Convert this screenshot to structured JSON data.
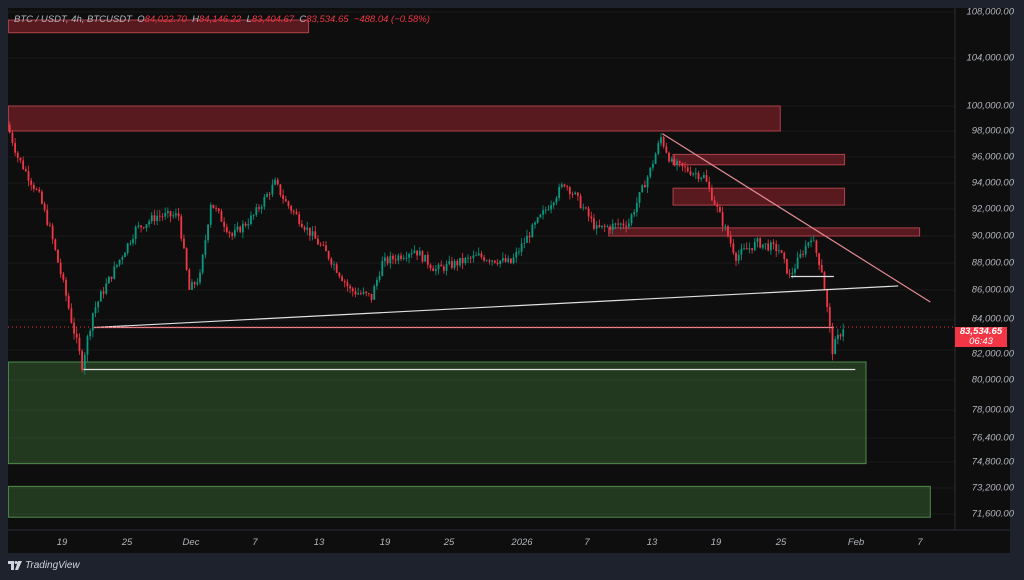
{
  "header": {
    "symbol": "BTC / USDT, 4h, BTCUSDT",
    "open_label": "O",
    "open": "84,022.70",
    "high_label": "H",
    "high": "84,146.22",
    "low_label": "L",
    "low": "83,404.67",
    "close_label": "C",
    "close": "83,534.65",
    "change": "−488.04 (−0.58%)"
  },
  "price_tag": {
    "price": "83,534.65",
    "countdown": "06:43",
    "color": "#f23645"
  },
  "branding": {
    "logo_text": "TradingView"
  },
  "colors": {
    "up": "#089981",
    "down": "#f23645",
    "background": "#0e0e0e",
    "supply_zone": "#7a1f28",
    "demand_zone": "#2a4a2a"
  },
  "chart_data": {
    "type": "candlestick",
    "title": "BTC / USDT, 4h, BTCUSDT",
    "y_ticks": [
      "108,000.00",
      "104,000.00",
      "100,000.00",
      "98,000.00",
      "96,000.00",
      "94,000.00",
      "92,000.00",
      "90,000.00",
      "88,000.00",
      "86,000.00",
      "84,000.00",
      "82,000.00",
      "80,000.00",
      "78,000.00",
      "76,400.00",
      "74,800.00",
      "73,200.00",
      "71,600.00"
    ],
    "x_ticks": [
      "19",
      "25",
      "Dec",
      "7",
      "13",
      "19",
      "25",
      "2026",
      "7",
      "13",
      "19",
      "25",
      "Feb",
      "7"
    ],
    "ylim": [
      70500,
      109000
    ],
    "approx_close_path": [
      [
        "2025-11-14",
        98500
      ],
      [
        "2025-11-15",
        96000
      ],
      [
        "2025-11-17",
        93000
      ],
      [
        "2025-11-18",
        90500
      ],
      [
        "2025-11-20",
        84000
      ],
      [
        "2025-11-21",
        81000
      ],
      [
        "2025-11-22",
        84500
      ],
      [
        "2025-11-24",
        87500
      ],
      [
        "2025-11-26",
        90500
      ],
      [
        "2025-11-28",
        91500
      ],
      [
        "2025-11-30",
        91500
      ],
      [
        "2025-12-01",
        86000
      ],
      [
        "2025-12-02",
        87000
      ],
      [
        "2025-12-03",
        92500
      ],
      [
        "2025-12-05",
        90000
      ],
      [
        "2025-12-07",
        91500
      ],
      [
        "2025-12-09",
        94000
      ],
      [
        "2025-12-10",
        92500
      ],
      [
        "2025-12-12",
        90500
      ],
      [
        "2025-12-14",
        88500
      ],
      [
        "2025-12-16",
        86000
      ],
      [
        "2025-12-18",
        85500
      ],
      [
        "2025-12-19",
        88000
      ],
      [
        "2025-12-22",
        89000
      ],
      [
        "2025-12-24",
        87500
      ],
      [
        "2025-12-28",
        88500
      ],
      [
        "2025-12-31",
        88000
      ],
      [
        "2026-01-02",
        90500
      ],
      [
        "2026-01-05",
        94000
      ],
      [
        "2026-01-06",
        93000
      ],
      [
        "2026-01-08",
        90500
      ],
      [
        "2026-01-11",
        91000
      ],
      [
        "2026-01-13",
        95000
      ],
      [
        "2026-01-14",
        97500
      ],
      [
        "2026-01-15",
        95500
      ],
      [
        "2026-01-18",
        94500
      ],
      [
        "2026-01-19",
        92500
      ],
      [
        "2026-01-20",
        90500
      ],
      [
        "2026-01-21",
        88500
      ],
      [
        "2026-01-23",
        89500
      ],
      [
        "2026-01-25",
        89000
      ],
      [
        "2026-01-26",
        87000
      ],
      [
        "2026-01-27",
        88500
      ],
      [
        "2026-01-28",
        90000
      ],
      [
        "2026-01-29",
        87500
      ],
      [
        "2026-01-30",
        82000
      ],
      [
        "2026-01-31",
        83535
      ]
    ],
    "zones": [
      {
        "kind": "supply",
        "from": "2025-11-14",
        "to": "2025-12-12",
        "low": 106200,
        "high": 107300
      },
      {
        "kind": "supply",
        "from": "2025-11-14",
        "to": "2026-01-25",
        "low": 98000,
        "high": 100000
      },
      {
        "kind": "supply",
        "from": "2026-01-15",
        "to": "2026-01-31",
        "low": 95400,
        "high": 96200
      },
      {
        "kind": "supply",
        "from": "2026-01-15",
        "to": "2026-01-31",
        "low": 92300,
        "high": 93600
      },
      {
        "kind": "supply",
        "from": "2026-01-09",
        "to": "2026-02-07",
        "low": 90000,
        "high": 90600
      },
      {
        "kind": "demand",
        "from": "2025-11-14",
        "to": "2026-02-02",
        "low": 74700,
        "high": 81200
      },
      {
        "kind": "demand",
        "from": "2025-11-14",
        "to": "2026-02-08",
        "low": 71400,
        "high": 73300
      }
    ],
    "lines": [
      {
        "kind": "trendline",
        "color": "#e0e0e0",
        "from": [
          "2025-11-22",
          83500
        ],
        "to": [
          "2026-02-05",
          86300
        ]
      },
      {
        "kind": "horizontal",
        "color": "#e0e0e0",
        "from": [
          "2025-11-21",
          80700
        ],
        "to": [
          "2026-02-01",
          80700
        ]
      },
      {
        "kind": "horizontal",
        "color": "#e58a95",
        "from": [
          "2025-11-22",
          83500
        ],
        "to": [
          "2026-01-30",
          83500
        ]
      },
      {
        "kind": "trendline",
        "color": "#e58a95",
        "from": [
          "2026-01-14",
          97800
        ],
        "to": [
          "2026-02-08",
          85200
        ]
      },
      {
        "kind": "horizontal",
        "color": "#e0e0e0",
        "from": [
          "2026-01-26",
          87000
        ],
        "to": [
          "2026-01-30",
          87000
        ]
      }
    ]
  }
}
